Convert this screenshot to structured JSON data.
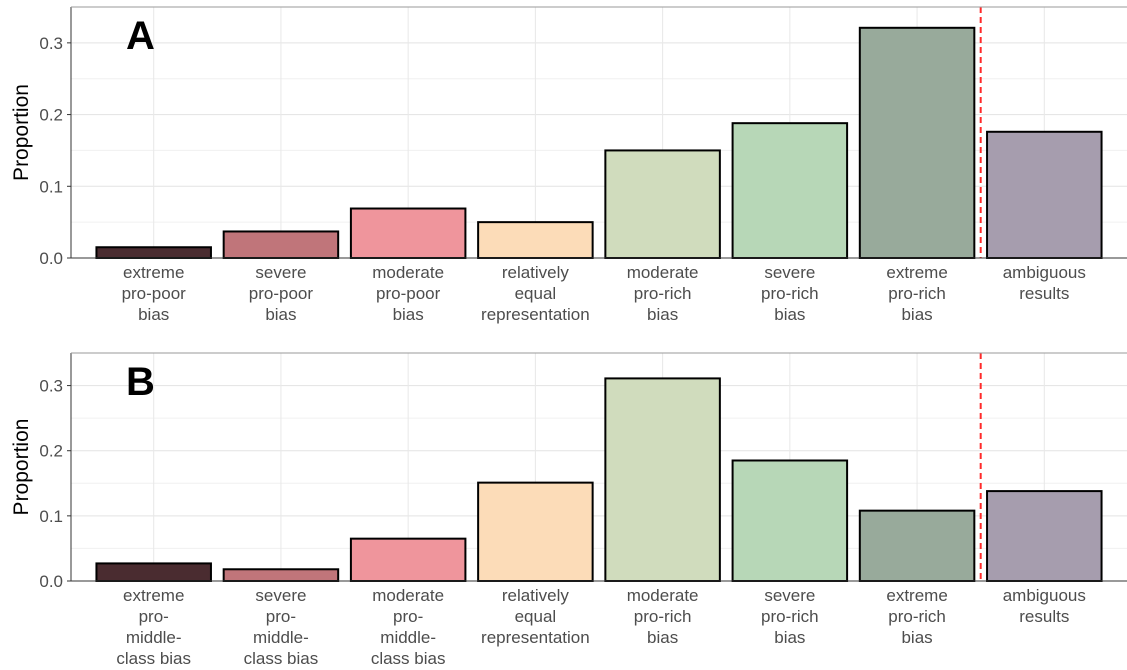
{
  "chart_data": [
    {
      "type": "bar",
      "panel_label": "A",
      "ylabel": "Proportion",
      "ylim": [
        0,
        0.35
      ],
      "yticks": [
        "0.0",
        "0.1",
        "0.2",
        "0.3"
      ],
      "grid": true,
      "reference_line": {
        "between": [
          "extreme pro-rich bias",
          "ambiguous results"
        ],
        "style": "dashed",
        "color": "#ff2a2a"
      },
      "categories": [
        "extreme pro-poor bias",
        "severe pro-poor bias",
        "moderate pro-poor bias",
        "relatively equal representation",
        "moderate pro-rich bias",
        "severe pro-rich bias",
        "extreme pro-rich bias",
        "ambiguous results"
      ],
      "category_lines": [
        [
          "extreme",
          "pro-poor",
          "bias"
        ],
        [
          "severe",
          "pro-poor",
          "bias"
        ],
        [
          "moderate",
          "pro-poor",
          "bias"
        ],
        [
          "relatively",
          "equal",
          "representation"
        ],
        [
          "moderate",
          "pro-rich",
          "bias"
        ],
        [
          "severe",
          "pro-rich",
          "bias"
        ],
        [
          "extreme",
          "pro-rich",
          "bias"
        ],
        [
          "ambiguous",
          "results"
        ]
      ],
      "values": [
        0.015,
        0.037,
        0.069,
        0.05,
        0.15,
        0.188,
        0.321,
        0.176
      ],
      "colors": [
        "#4a2c30",
        "#c0757a",
        "#ef959c",
        "#fcdcb8",
        "#d0dcbd",
        "#b7d7b7",
        "#98aa9b",
        "#a69dae"
      ]
    },
    {
      "type": "bar",
      "panel_label": "B",
      "ylabel": "Proportion",
      "ylim": [
        0,
        0.35
      ],
      "yticks": [
        "0.0",
        "0.1",
        "0.2",
        "0.3"
      ],
      "grid": true,
      "reference_line": {
        "between": [
          "extreme pro-rich bias",
          "ambiguous results"
        ],
        "style": "dashed",
        "color": "#ff2a2a"
      },
      "categories": [
        "extreme pro-middle-class bias",
        "severe pro-middle-class bias",
        "moderate pro-middle-class bias",
        "relatively equal representation",
        "moderate pro-rich bias",
        "severe pro-rich bias",
        "extreme pro-rich bias",
        "ambiguous results"
      ],
      "category_lines": [
        [
          "extreme",
          "pro-",
          "middle-",
          "class bias"
        ],
        [
          "severe",
          "pro-",
          "middle-",
          "class bias"
        ],
        [
          "moderate",
          "pro-",
          "middle-",
          "class bias"
        ],
        [
          "relatively",
          "equal",
          "representation"
        ],
        [
          "moderate",
          "pro-rich",
          "bias"
        ],
        [
          "severe",
          "pro-rich",
          "bias"
        ],
        [
          "extreme",
          "pro-rich",
          "bias"
        ],
        [
          "ambiguous",
          "results"
        ]
      ],
      "values": [
        0.027,
        0.018,
        0.065,
        0.151,
        0.311,
        0.185,
        0.108,
        0.138
      ],
      "colors": [
        "#4a2c30",
        "#c0757a",
        "#ef959c",
        "#fcdcb8",
        "#d0dcbd",
        "#b7d7b7",
        "#98aa9b",
        "#a69dae"
      ]
    }
  ]
}
